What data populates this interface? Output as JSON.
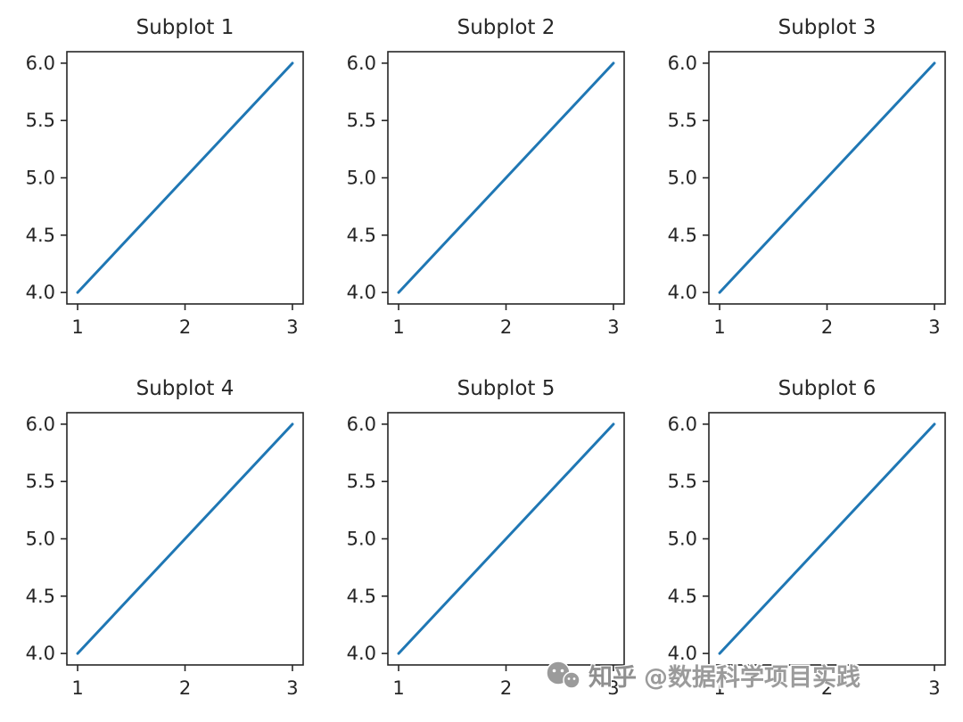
{
  "figure": {
    "background": "#ffffff"
  },
  "watermark": {
    "icon": "wechat-icon",
    "source": "知乎",
    "account": "@数据科学项目实践",
    "color": "#8f8f8f"
  },
  "chart_data": [
    {
      "type": "line",
      "title": "Subplot 1",
      "x": [
        1,
        2,
        3
      ],
      "y": [
        4,
        5,
        6
      ],
      "xticks": [
        1,
        2,
        3
      ],
      "xtick_labels": [
        "1",
        "2",
        "3"
      ],
      "yticks": [
        4.0,
        4.5,
        5.0,
        5.5,
        6.0
      ],
      "ytick_labels": [
        "4.0",
        "4.5",
        "5.0",
        "5.5",
        "6.0"
      ],
      "xlim": [
        0.9,
        3.1
      ],
      "ylim": [
        3.9,
        6.1
      ],
      "xlabel": "",
      "ylabel": "",
      "grid": false,
      "legend": false,
      "line_color": "#1f77b4"
    },
    {
      "type": "line",
      "title": "Subplot 2",
      "x": [
        1,
        2,
        3
      ],
      "y": [
        4,
        5,
        6
      ],
      "xticks": [
        1,
        2,
        3
      ],
      "xtick_labels": [
        "1",
        "2",
        "3"
      ],
      "yticks": [
        4.0,
        4.5,
        5.0,
        5.5,
        6.0
      ],
      "ytick_labels": [
        "4.0",
        "4.5",
        "5.0",
        "5.5",
        "6.0"
      ],
      "xlim": [
        0.9,
        3.1
      ],
      "ylim": [
        3.9,
        6.1
      ],
      "xlabel": "",
      "ylabel": "",
      "grid": false,
      "legend": false,
      "line_color": "#1f77b4"
    },
    {
      "type": "line",
      "title": "Subplot 3",
      "x": [
        1,
        2,
        3
      ],
      "y": [
        4,
        5,
        6
      ],
      "xticks": [
        1,
        2,
        3
      ],
      "xtick_labels": [
        "1",
        "2",
        "3"
      ],
      "yticks": [
        4.0,
        4.5,
        5.0,
        5.5,
        6.0
      ],
      "ytick_labels": [
        "4.0",
        "4.5",
        "5.0",
        "5.5",
        "6.0"
      ],
      "xlim": [
        0.9,
        3.1
      ],
      "ylim": [
        3.9,
        6.1
      ],
      "xlabel": "",
      "ylabel": "",
      "grid": false,
      "legend": false,
      "line_color": "#1f77b4"
    },
    {
      "type": "line",
      "title": "Subplot 4",
      "x": [
        1,
        2,
        3
      ],
      "y": [
        4,
        5,
        6
      ],
      "xticks": [
        1,
        2,
        3
      ],
      "xtick_labels": [
        "1",
        "2",
        "3"
      ],
      "yticks": [
        4.0,
        4.5,
        5.0,
        5.5,
        6.0
      ],
      "ytick_labels": [
        "4.0",
        "4.5",
        "5.0",
        "5.5",
        "6.0"
      ],
      "xlim": [
        0.9,
        3.1
      ],
      "ylim": [
        3.9,
        6.1
      ],
      "xlabel": "",
      "ylabel": "",
      "grid": false,
      "legend": false,
      "line_color": "#1f77b4"
    },
    {
      "type": "line",
      "title": "Subplot 5",
      "x": [
        1,
        2,
        3
      ],
      "y": [
        4,
        5,
        6
      ],
      "xticks": [
        1,
        2,
        3
      ],
      "xtick_labels": [
        "1",
        "2",
        "3"
      ],
      "yticks": [
        4.0,
        4.5,
        5.0,
        5.5,
        6.0
      ],
      "ytick_labels": [
        "4.0",
        "4.5",
        "5.0",
        "5.5",
        "6.0"
      ],
      "xlim": [
        0.9,
        3.1
      ],
      "ylim": [
        3.9,
        6.1
      ],
      "xlabel": "",
      "ylabel": "",
      "grid": false,
      "legend": false,
      "line_color": "#1f77b4"
    },
    {
      "type": "line",
      "title": "Subplot 6",
      "x": [
        1,
        2,
        3
      ],
      "y": [
        4,
        5,
        6
      ],
      "xticks": [
        1,
        2,
        3
      ],
      "xtick_labels": [
        "1",
        "2",
        "3"
      ],
      "yticks": [
        4.0,
        4.5,
        5.0,
        5.5,
        6.0
      ],
      "ytick_labels": [
        "4.0",
        "4.5",
        "5.0",
        "5.5",
        "6.0"
      ],
      "xlim": [
        0.9,
        3.1
      ],
      "ylim": [
        3.9,
        6.1
      ],
      "xlabel": "",
      "ylabel": "",
      "grid": false,
      "legend": false,
      "line_color": "#1f77b4"
    }
  ]
}
